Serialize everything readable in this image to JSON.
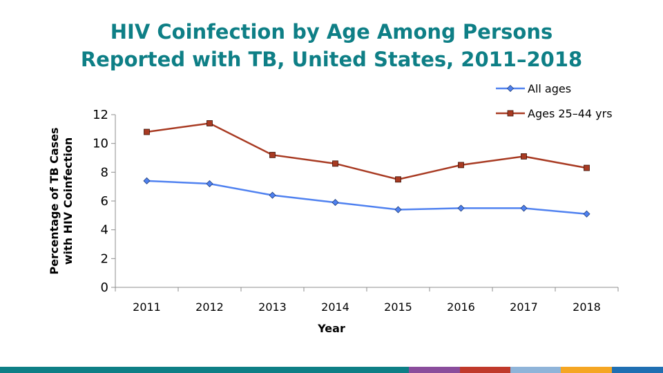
{
  "title": {
    "line1": "HIV Coinfection by Age Among Persons",
    "line2": "Reported with TB, United States, 2011–2018"
  },
  "chart_data": {
    "type": "line",
    "x": [
      "2011",
      "2012",
      "2013",
      "2014",
      "2015",
      "2016",
      "2017",
      "2018"
    ],
    "series": [
      {
        "name": "All ages",
        "values": [
          7.4,
          7.2,
          6.4,
          5.9,
          5.4,
          5.5,
          5.5,
          5.1
        ],
        "color": "#4f81f0",
        "marker": "diamond"
      },
      {
        "name": "Ages 25–44 yrs",
        "values": [
          10.8,
          11.4,
          9.2,
          8.6,
          7.5,
          8.5,
          9.1,
          8.3
        ],
        "color": "#a83a22",
        "marker": "square"
      }
    ],
    "xlabel": "Year",
    "ylabel_lines": [
      "Percentage of TB Cases",
      "with HIV Coinfection"
    ],
    "ylim": [
      0,
      12
    ],
    "yticks": [
      0,
      2,
      4,
      6,
      8,
      10,
      12
    ],
    "grid": false,
    "legend_position": "top-right"
  },
  "footer_colors": [
    "#0e7f86",
    "#8a4d9c",
    "#c0392b",
    "#8fb4d9",
    "#f5a623",
    "#1f6fb2"
  ]
}
